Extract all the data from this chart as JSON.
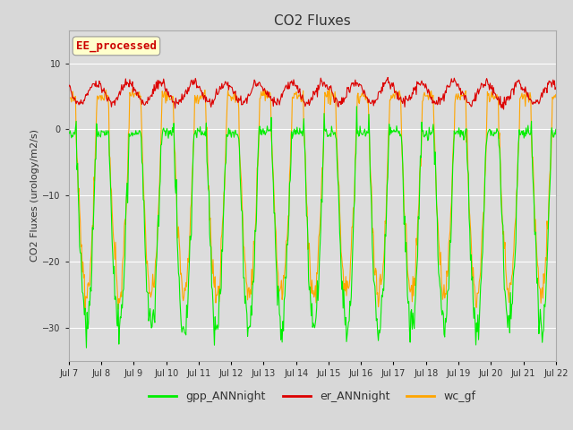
{
  "title": "CO2 Fluxes",
  "ylabel": "CO2 Fluxes (urology/m2/s)",
  "ylim": [
    -35,
    15
  ],
  "background_color": "#d8d8d8",
  "plot_bg_color": "#dcdcdc",
  "grid_color": "white",
  "gpp_color": "#00ee00",
  "er_color": "#dd0000",
  "wc_color": "#ffa500",
  "label_text": "EE_processed",
  "label_color": "#cc0000",
  "label_bg": "#ffffcc",
  "legend_labels": [
    "gpp_ANNnight",
    "er_ANNnight",
    "wc_gf"
  ],
  "xtick_labels": [
    "Jul 7",
    "Jul 8",
    "Jul 9",
    "Jul 10",
    "Jul 11",
    "Jul 12",
    "Jul 13",
    "Jul 14",
    "Jul 15",
    "Jul 16",
    "Jul 17",
    "Jul 18",
    "Jul 19",
    "Jul 20",
    "Jul 21",
    "Jul 22"
  ],
  "n_points_per_day": 48,
  "n_days": 15,
  "title_fontsize": 11,
  "tick_fontsize": 7,
  "ylabel_fontsize": 8,
  "legend_fontsize": 9
}
